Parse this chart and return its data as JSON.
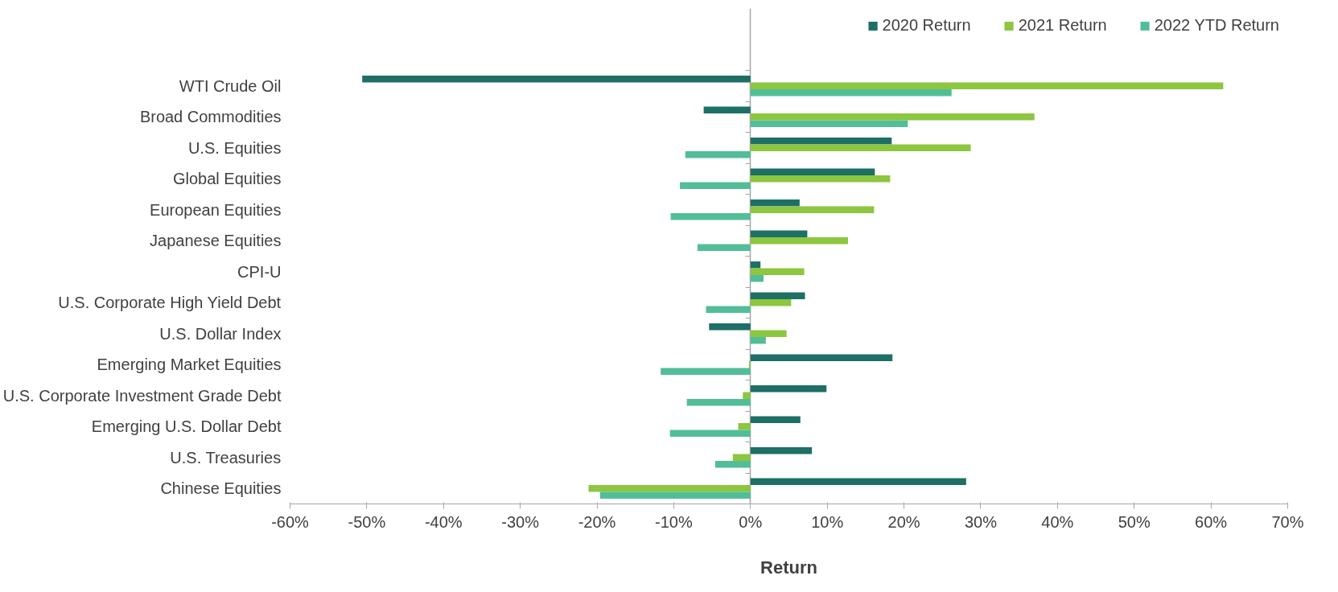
{
  "chart_data": {
    "type": "bar",
    "orientation": "horizontal",
    "xlabel": "Return",
    "legend": "top right",
    "categories": [
      "WTI Crude Oil",
      "Broad Commodities",
      "U.S. Equities",
      "Global Equities",
      "European Equities",
      "Japanese Equities",
      "CPI-U",
      "U.S. Corporate High Yield Debt",
      "U.S. Dollar Index",
      "Emerging Market Equities",
      "U.S. Corporate Investment Grade Debt",
      "Emerging U.S. Dollar Debt",
      "U.S. Treasuries",
      "Chinese Equities"
    ],
    "series": [
      {
        "name": "2020 Return",
        "color": "#1e6f65",
        "values": [
          -50.6,
          -6.1,
          18.4,
          16.2,
          6.4,
          7.4,
          1.3,
          7.1,
          -5.4,
          18.5,
          9.9,
          6.5,
          8.0,
          28.1
        ]
      },
      {
        "name": "2021 Return",
        "color": "#8dc63f",
        "values": [
          61.6,
          37.0,
          28.7,
          18.2,
          16.1,
          12.7,
          7.0,
          5.3,
          4.7,
          -0.2,
          -1.0,
          -1.6,
          -2.3,
          -21.1
        ]
      },
      {
        "name": "2022 YTD Return",
        "color": "#52be98",
        "values": [
          26.2,
          20.5,
          -8.5,
          -9.2,
          -10.4,
          -6.9,
          1.7,
          -5.8,
          2.0,
          -11.7,
          -8.3,
          -10.5,
          -4.6,
          -19.6
        ]
      }
    ],
    "xlim": [
      -60,
      70
    ],
    "xticks": [
      {
        "value": -60,
        "label": "-60%"
      },
      {
        "value": -50,
        "label": "-50%"
      },
      {
        "value": -40,
        "label": "-40%"
      },
      {
        "value": -30,
        "label": "-30%"
      },
      {
        "value": -20,
        "label": "-20%"
      },
      {
        "value": -10,
        "label": "-10%"
      },
      {
        "value": 0,
        "label": "0%"
      },
      {
        "value": 10,
        "label": "10%"
      },
      {
        "value": 20,
        "label": "20%"
      },
      {
        "value": 30,
        "label": "30%"
      },
      {
        "value": 40,
        "label": "40%"
      },
      {
        "value": 50,
        "label": "50%"
      },
      {
        "value": 60,
        "label": "60%"
      },
      {
        "value": 70,
        "label": "70%"
      }
    ]
  }
}
